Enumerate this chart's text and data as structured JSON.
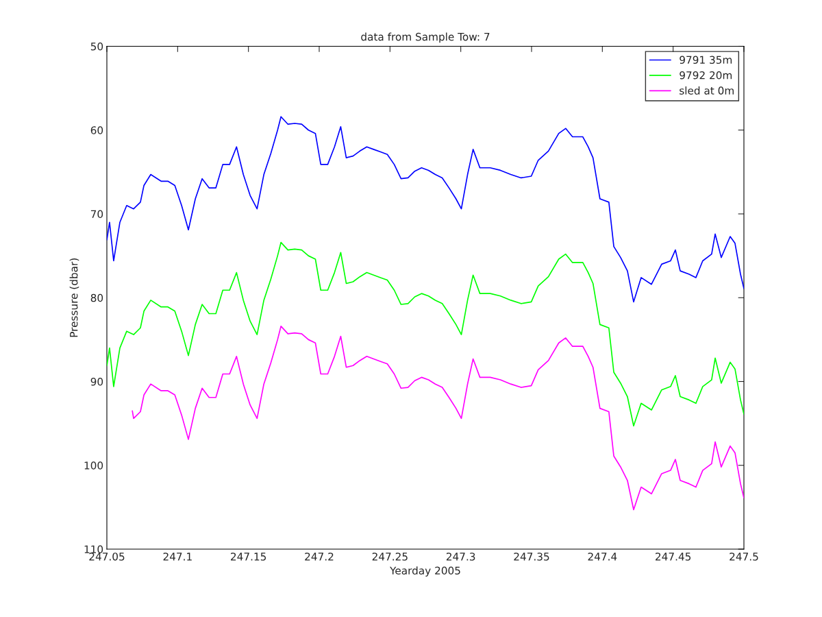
{
  "chart_data": {
    "type": "line",
    "title": "data from Sample Tow: 7",
    "xlabel": "Yearday 2005",
    "ylabel": "Pressure (dbar)",
    "x": [
      247.05,
      247.0519,
      247.0548,
      247.0592,
      247.064,
      247.0689,
      247.0737,
      247.0762,
      247.081,
      247.0883,
      247.0931,
      247.098,
      247.1028,
      247.1076,
      247.1125,
      247.1173,
      247.1222,
      247.127,
      247.1319,
      247.1367,
      247.1416,
      247.1464,
      247.1512,
      247.1561,
      247.1609,
      247.1658,
      247.1706,
      247.173,
      247.1779,
      247.1827,
      247.1876,
      247.1924,
      247.1973,
      247.2011,
      247.206,
      247.2108,
      247.2152,
      247.2191,
      247.2239,
      247.2287,
      247.2336,
      247.2384,
      247.2433,
      247.2481,
      247.253,
      247.2578,
      247.2627,
      247.2675,
      247.2723,
      247.2772,
      247.282,
      247.2869,
      247.2917,
      247.2966,
      247.3004,
      247.3048,
      247.3087,
      247.3135,
      247.3208,
      247.328,
      247.3353,
      247.3426,
      247.3498,
      247.3547,
      247.3619,
      247.3692,
      247.3741,
      247.3789,
      247.3862,
      247.39,
      247.3934,
      247.3983,
      247.4046,
      247.4081,
      247.4129,
      247.4177,
      247.4221,
      247.4274,
      247.4347,
      247.4419,
      247.4482,
      247.4516,
      247.455,
      247.4613,
      247.4661,
      247.4709,
      247.4772,
      247.4797,
      247.484,
      247.4903,
      247.4937,
      247.4976,
      247.5
    ],
    "series": [
      {
        "name": "9791 35m",
        "color": "#0000ff",
        "values": [
          73.1,
          71,
          75.6,
          71,
          69,
          69.4,
          68.6,
          66.6,
          65.3,
          66.1,
          66.1,
          66.6,
          69,
          71.9,
          68.2,
          65.8,
          66.9,
          66.9,
          64.1,
          64.1,
          62,
          65.3,
          67.8,
          69.4,
          65.3,
          62.8,
          60,
          58.4,
          59.3,
          59.2,
          59.3,
          60,
          60.4,
          64.1,
          64.1,
          62,
          59.6,
          63.3,
          63.1,
          62.5,
          62,
          62.3,
          62.6,
          62.9,
          64.1,
          65.8,
          65.7,
          64.9,
          64.5,
          64.8,
          65.3,
          65.7,
          66.9,
          68.2,
          69.4,
          65.3,
          62.3,
          64.5,
          64.5,
          64.8,
          65.3,
          65.7,
          65.5,
          63.6,
          62.5,
          60.4,
          59.8,
          60.8,
          60.8,
          62,
          63.3,
          68.2,
          68.6,
          73.9,
          75.2,
          76.8,
          80.5,
          77.6,
          78.4,
          76,
          75.6,
          74.3,
          76.8,
          77.2,
          77.6,
          75.6,
          74.8,
          72.4,
          75.2,
          72.7,
          73.5,
          77.2,
          78.9
        ]
      },
      {
        "name": "9792 20m",
        "color": "#00ff00",
        "values": [
          88.1,
          86,
          90.6,
          86,
          84,
          84.4,
          83.6,
          81.6,
          80.3,
          81.1,
          81.1,
          81.6,
          84,
          86.9,
          83.2,
          80.8,
          81.9,
          81.9,
          79.1,
          79.1,
          77,
          80.3,
          82.8,
          84.4,
          80.3,
          77.8,
          75,
          73.4,
          74.3,
          74.2,
          74.3,
          75,
          75.4,
          79.1,
          79.1,
          77,
          74.6,
          78.3,
          78.1,
          77.5,
          77,
          77.3,
          77.6,
          77.9,
          79.1,
          80.8,
          80.7,
          79.9,
          79.5,
          79.8,
          80.3,
          80.7,
          81.9,
          83.2,
          84.4,
          80.3,
          77.3,
          79.5,
          79.5,
          79.8,
          80.3,
          80.7,
          80.5,
          78.6,
          77.5,
          75.4,
          74.8,
          75.8,
          75.8,
          77,
          78.3,
          83.2,
          83.6,
          88.9,
          90.2,
          91.8,
          95.3,
          92.6,
          93.4,
          91,
          90.6,
          89.3,
          91.8,
          92.2,
          92.6,
          90.6,
          89.8,
          87.2,
          90.2,
          87.7,
          88.5,
          92.2,
          93.9
        ]
      },
      {
        "name": "sled at 0m",
        "color": "#ff00ff",
        "x": [
          247.068,
          247.0689,
          247.0737,
          247.0762,
          247.081,
          247.0883,
          247.0931,
          247.098,
          247.1028,
          247.1076,
          247.1125,
          247.1173,
          247.1222,
          247.127,
          247.1319,
          247.1367,
          247.1416,
          247.1464,
          247.1512,
          247.1561,
          247.1609,
          247.1658,
          247.1706,
          247.173,
          247.1779,
          247.1827,
          247.1876,
          247.1924,
          247.1973,
          247.2011,
          247.206,
          247.2108,
          247.2152,
          247.2191,
          247.2239,
          247.2287,
          247.2336,
          247.2384,
          247.2433,
          247.2481,
          247.253,
          247.2578,
          247.2627,
          247.2675,
          247.2723,
          247.2772,
          247.282,
          247.2869,
          247.2917,
          247.2966,
          247.3004,
          247.3048,
          247.3087,
          247.3135,
          247.3208,
          247.328,
          247.3353,
          247.3426,
          247.3498,
          247.3547,
          247.3619,
          247.3692,
          247.3741,
          247.3789,
          247.3862,
          247.39,
          247.3934,
          247.3983,
          247.4046,
          247.4081,
          247.4129,
          247.4177,
          247.4221,
          247.4274,
          247.4347,
          247.4419,
          247.4482,
          247.4516,
          247.455,
          247.4613,
          247.4661,
          247.4709,
          247.4772,
          247.4797,
          247.484,
          247.4903,
          247.4937,
          247.4976,
          247.5
        ],
        "values": [
          93.5,
          94.4,
          93.6,
          91.6,
          90.3,
          91.1,
          91.1,
          91.6,
          94,
          96.9,
          93.2,
          90.8,
          91.9,
          91.9,
          89.1,
          89.1,
          87,
          90.3,
          92.8,
          94.4,
          90.3,
          87.8,
          85,
          83.4,
          84.3,
          84.2,
          84.3,
          85,
          85.4,
          89.1,
          89.1,
          87,
          84.6,
          88.3,
          88.1,
          87.5,
          87,
          87.3,
          87.6,
          87.9,
          89.1,
          90.8,
          90.7,
          89.9,
          89.5,
          89.8,
          90.3,
          90.7,
          91.9,
          93.2,
          94.4,
          90.3,
          87.3,
          89.5,
          89.5,
          89.8,
          90.3,
          90.7,
          90.5,
          88.6,
          87.5,
          85.4,
          84.8,
          85.8,
          85.8,
          87,
          88.3,
          93.2,
          93.6,
          98.9,
          100.2,
          101.8,
          105.3,
          102.6,
          103.4,
          101,
          100.6,
          99.3,
          101.8,
          102.2,
          102.6,
          100.6,
          99.8,
          97.2,
          100.2,
          97.7,
          98.5,
          102.2,
          103.9
        ]
      }
    ],
    "xlim": [
      247.05,
      247.5
    ],
    "xticks": [
      247.05,
      247.1,
      247.15,
      247.2,
      247.25,
      247.3,
      247.35,
      247.4,
      247.45,
      247.5
    ],
    "ylim": [
      110,
      50
    ],
    "yticks": [
      50,
      60,
      70,
      80,
      90,
      100,
      110
    ],
    "grid": false,
    "legend": "top right",
    "line_style": "solid",
    "marker": "none"
  }
}
